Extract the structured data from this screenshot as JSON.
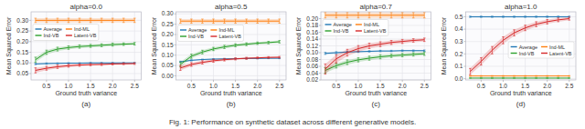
{
  "chart_data": [
    {
      "type": "line",
      "title": "alpha=0.0",
      "xlabel": "Ground truth variance",
      "ylabel": "Mean Squared Error",
      "annotation": "(a)",
      "x": [
        0.25,
        0.5,
        0.75,
        1.0,
        1.25,
        1.5,
        1.75,
        2.0,
        2.25,
        2.5
      ],
      "xlim": [
        0.15,
        2.65
      ],
      "xticks": [
        0.5,
        {
          "value": 1.0,
          "label": "1.0"
        },
        1.5,
        {
          "value": 2.0,
          "label": "2.0"
        },
        2.5
      ],
      "ylim": [
        0.02,
        0.34
      ],
      "yticks": [
        0.05,
        {
          "value": 0.1,
          "label": "0.10"
        },
        0.15,
        {
          "value": 0.2,
          "label": "0.20"
        },
        0.25,
        {
          "value": 0.3,
          "label": "0.30"
        }
      ],
      "grid": true,
      "legend": "upper left",
      "series": [
        {
          "name": "Average",
          "color": "#1f77b4",
          "values": [
            0.095,
            0.097,
            0.098,
            0.099,
            0.099,
            0.1,
            0.1,
            0.1,
            0.1,
            0.1
          ],
          "errors": [
            0.003,
            0.003,
            0.002,
            0.002,
            0.002,
            0.002,
            0.002,
            0.002,
            0.002,
            0.002
          ]
        },
        {
          "name": "Ind-ML",
          "color": "#ff7f0e",
          "values": [
            0.3,
            0.3,
            0.3,
            0.3,
            0.3,
            0.3,
            0.3,
            0.3,
            0.3,
            0.3
          ],
          "errors": [
            0.01,
            0.01,
            0.01,
            0.01,
            0.01,
            0.01,
            0.01,
            0.01,
            0.01,
            0.01
          ]
        },
        {
          "name": "Ind-VB",
          "color": "#2ca02c",
          "values": [
            0.115,
            0.15,
            0.165,
            0.172,
            0.177,
            0.18,
            0.183,
            0.186,
            0.188,
            0.19
          ],
          "errors": [
            0.012,
            0.01,
            0.009,
            0.008,
            0.008,
            0.007,
            0.007,
            0.007,
            0.006,
            0.006
          ]
        },
        {
          "name": "Latent-VB",
          "color": "#d62728",
          "values": [
            0.065,
            0.075,
            0.082,
            0.087,
            0.09,
            0.092,
            0.093,
            0.095,
            0.096,
            0.097
          ],
          "errors": [
            0.012,
            0.009,
            0.008,
            0.007,
            0.006,
            0.005,
            0.005,
            0.004,
            0.004,
            0.004
          ]
        }
      ]
    },
    {
      "type": "line",
      "title": "alpha=0.5",
      "xlabel": "Ground truth variance",
      "ylabel": "Mean Squared Error",
      "annotation": "(b)",
      "x": [
        0.25,
        0.5,
        0.75,
        1.0,
        1.25,
        1.5,
        1.75,
        2.0,
        2.25,
        2.5
      ],
      "xlim": [
        0.15,
        2.65
      ],
      "xticks": [
        0.5,
        {
          "value": 1.0,
          "label": "1.0"
        },
        1.5,
        {
          "value": 2.0,
          "label": "2.0"
        },
        2.5
      ],
      "ylim": [
        -0.02,
        0.31
      ],
      "yticks": [
        {
          "value": 0,
          "label": "0.00"
        },
        0.05,
        {
          "value": 0.1,
          "label": "0.10"
        },
        0.15,
        {
          "value": 0.2,
          "label": "0.20"
        },
        0.25,
        {
          "value": 0.3,
          "label": "0.30"
        }
      ],
      "grid": true,
      "legend": "upper left",
      "series": [
        {
          "name": "Average",
          "color": "#1f77b4",
          "values": [
            0.068,
            0.075,
            0.079,
            0.081,
            0.082,
            0.083,
            0.084,
            0.084,
            0.085,
            0.085
          ],
          "errors": [
            0.003,
            0.003,
            0.002,
            0.002,
            0.002,
            0.002,
            0.002,
            0.002,
            0.002,
            0.002
          ]
        },
        {
          "name": "Ind-ML",
          "color": "#ff7f0e",
          "values": [
            0.265,
            0.265,
            0.265,
            0.265,
            0.265,
            0.265,
            0.265,
            0.265,
            0.265,
            0.265
          ],
          "errors": [
            0.01,
            0.01,
            0.01,
            0.01,
            0.01,
            0.01,
            0.01,
            0.01,
            0.01,
            0.01
          ]
        },
        {
          "name": "Ind-VB",
          "color": "#2ca02c",
          "values": [
            0.055,
            0.095,
            0.115,
            0.13,
            0.14,
            0.148,
            0.153,
            0.158,
            0.161,
            0.165
          ],
          "errors": [
            0.012,
            0.01,
            0.009,
            0.008,
            0.008,
            0.007,
            0.007,
            0.006,
            0.006,
            0.006
          ]
        },
        {
          "name": "Latent-VB",
          "color": "#d62728",
          "values": [
            0.038,
            0.055,
            0.065,
            0.073,
            0.078,
            0.082,
            0.085,
            0.087,
            0.089,
            0.09
          ],
          "errors": [
            0.012,
            0.009,
            0.008,
            0.007,
            0.006,
            0.005,
            0.005,
            0.004,
            0.004,
            0.004
          ]
        }
      ]
    },
    {
      "type": "line",
      "title": "alpha=0.7",
      "xlabel": "Ground truth variance",
      "ylabel": "Mean Squared Error",
      "annotation": "(c)",
      "x": [
        0.25,
        0.5,
        0.75,
        1.0,
        1.25,
        1.5,
        1.75,
        2.0,
        2.25,
        2.5
      ],
      "xlim": [
        0.15,
        2.65
      ],
      "xticks": [
        0.5,
        {
          "value": 1.0,
          "label": "1.0"
        },
        1.5,
        {
          "value": 2.0,
          "label": "2.0"
        },
        2.5
      ],
      "ylim": [
        0.02,
        0.22
      ],
      "yticks": [
        0.02,
        0.04,
        0.06,
        0.08,
        {
          "value": 0.1,
          "label": "0.10"
        },
        0.12,
        0.14,
        0.16,
        0.18,
        {
          "value": 0.2,
          "label": "0.20"
        }
      ],
      "grid": true,
      "legend": "upper left",
      "series": [
        {
          "name": "Average",
          "color": "#1f77b4",
          "values": [
            0.098,
            0.1,
            0.102,
            0.103,
            0.104,
            0.105,
            0.105,
            0.106,
            0.106,
            0.106
          ],
          "errors": [
            0.003,
            0.003,
            0.002,
            0.002,
            0.002,
            0.002,
            0.002,
            0.002,
            0.002,
            0.002
          ]
        },
        {
          "name": "Ind-ML",
          "color": "#ff7f0e",
          "values": [
            0.21,
            0.21,
            0.21,
            0.21,
            0.21,
            0.21,
            0.21,
            0.21,
            0.21,
            0.21
          ],
          "errors": [
            0.008,
            0.008,
            0.008,
            0.008,
            0.008,
            0.008,
            0.008,
            0.008,
            0.008,
            0.008
          ]
        },
        {
          "name": "Ind-VB",
          "color": "#2ca02c",
          "values": [
            0.048,
            0.062,
            0.072,
            0.079,
            0.084,
            0.088,
            0.091,
            0.093,
            0.095,
            0.097
          ],
          "errors": [
            0.008,
            0.007,
            0.007,
            0.006,
            0.006,
            0.006,
            0.005,
            0.005,
            0.005,
            0.005
          ]
        },
        {
          "name": "Latent-VB",
          "color": "#d62728",
          "values": [
            0.052,
            0.082,
            0.1,
            0.112,
            0.12,
            0.125,
            0.13,
            0.133,
            0.136,
            0.138
          ],
          "errors": [
            0.015,
            0.012,
            0.01,
            0.009,
            0.008,
            0.007,
            0.006,
            0.006,
            0.005,
            0.005
          ]
        }
      ]
    },
    {
      "type": "line",
      "title": "alpha=1.0",
      "xlabel": "Ground truth variance",
      "ylabel": "Mean Squared Error",
      "annotation": "(d)",
      "x": [
        0.25,
        0.5,
        0.75,
        1.0,
        1.25,
        1.5,
        1.75,
        2.0,
        2.25,
        2.5
      ],
      "xlim": [
        0.15,
        2.65
      ],
      "xticks": [
        0.5,
        {
          "value": 1.0,
          "label": "1.0"
        },
        1.5,
        {
          "value": 2.0,
          "label": "2.0"
        },
        2.5
      ],
      "ylim": [
        -0.01,
        0.54
      ],
      "yticks": [
        {
          "value": 0,
          "label": "0.0"
        },
        0.1,
        0.2,
        0.3,
        0.4,
        0.5
      ],
      "grid": true,
      "legend": "center right",
      "series": [
        {
          "name": "Average",
          "color": "#1f77b4",
          "values": [
            0.5,
            0.5,
            0.5,
            0.5,
            0.5,
            0.5,
            0.5,
            0.5,
            0.5,
            0.5
          ],
          "errors": [
            0.005,
            0.005,
            0.005,
            0.005,
            0.005,
            0.005,
            0.005,
            0.005,
            0.005,
            0.005
          ]
        },
        {
          "name": "Ind-ML",
          "color": "#ff7f0e",
          "values": [
            0.022,
            0.022,
            0.022,
            0.022,
            0.022,
            0.022,
            0.022,
            0.022,
            0.022,
            0.022
          ],
          "errors": [
            0.003,
            0.003,
            0.003,
            0.003,
            0.003,
            0.003,
            0.003,
            0.003,
            0.003,
            0.003
          ]
        },
        {
          "name": "Ind-VB",
          "color": "#2ca02c",
          "values": [
            0.005,
            0.005,
            0.005,
            0.005,
            0.005,
            0.005,
            0.005,
            0.005,
            0.005,
            0.005
          ],
          "errors": [
            0.001,
            0.001,
            0.001,
            0.001,
            0.001,
            0.001,
            0.001,
            0.001,
            0.001,
            0.001
          ]
        },
        {
          "name": "Latent-VB",
          "color": "#d62728",
          "values": [
            0.058,
            0.14,
            0.23,
            0.31,
            0.37,
            0.41,
            0.44,
            0.46,
            0.475,
            0.485
          ],
          "errors": [
            0.025,
            0.03,
            0.03,
            0.028,
            0.025,
            0.022,
            0.02,
            0.018,
            0.015,
            0.012
          ]
        }
      ]
    }
  ],
  "caption": "Fig. 1: Performance on synthetic dataset across different generative models."
}
